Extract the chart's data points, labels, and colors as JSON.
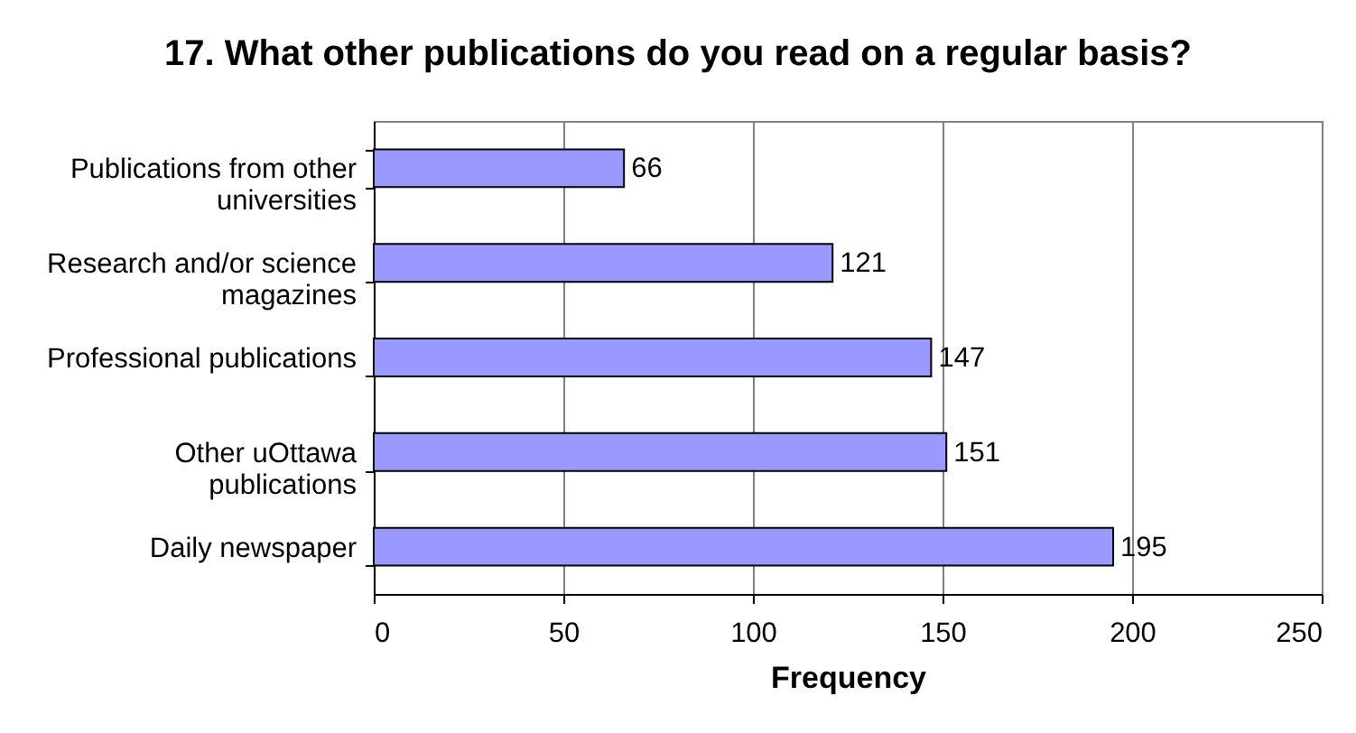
{
  "chart_data": {
    "type": "bar",
    "orientation": "horizontal",
    "title": "17. What other publications do you read on a regular basis?",
    "xlabel": "Frequency",
    "categories": [
      "Publications from other universities",
      "Research and/or science magazines",
      "Professional publications",
      "Other uOttawa publications",
      "Daily newspaper"
    ],
    "values": [
      66,
      121,
      147,
      151,
      195
    ],
    "color": "#9999ff",
    "xlim": [
      0,
      250
    ],
    "xticks": [
      0,
      50,
      100,
      150,
      200,
      250
    ],
    "grid": "x",
    "data_labels": true
  }
}
